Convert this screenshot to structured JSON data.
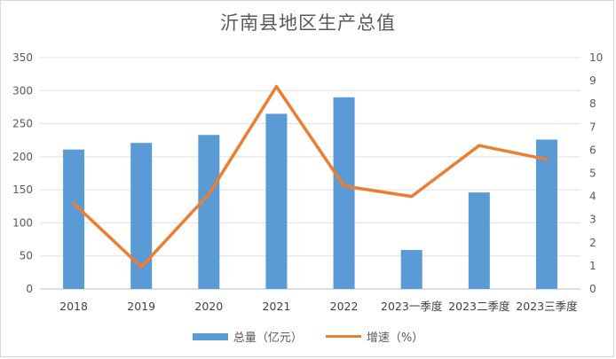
{
  "chart_data": {
    "type": "bar",
    "title": "沂南县地区生产总值",
    "categories": [
      "2018",
      "2019",
      "2020",
      "2021",
      "2022",
      "2023一季度",
      "2023二季度",
      "2023三季度"
    ],
    "series": [
      {
        "name": "总量（亿元）",
        "type": "bar",
        "axis": "left",
        "color": "#5b9bd5",
        "values": [
          211,
          221,
          233,
          265,
          290,
          59,
          146,
          226
        ]
      },
      {
        "name": "增速（%）",
        "type": "line",
        "axis": "right",
        "color": "#ed7d31",
        "values": [
          3.7,
          0.95,
          4.1,
          8.75,
          4.45,
          4.0,
          6.2,
          5.6
        ]
      }
    ],
    "ylim": [
      0,
      350
    ],
    "y_ticks": [
      "0",
      "50",
      "100",
      "150",
      "200",
      "250",
      "300",
      "350"
    ],
    "y2lim": [
      0,
      10
    ],
    "y2_ticks": [
      "0",
      "1",
      "2",
      "3",
      "4",
      "5",
      "6",
      "7",
      "8",
      "9",
      "10"
    ],
    "grid": true,
    "legend_position": "bottom"
  }
}
